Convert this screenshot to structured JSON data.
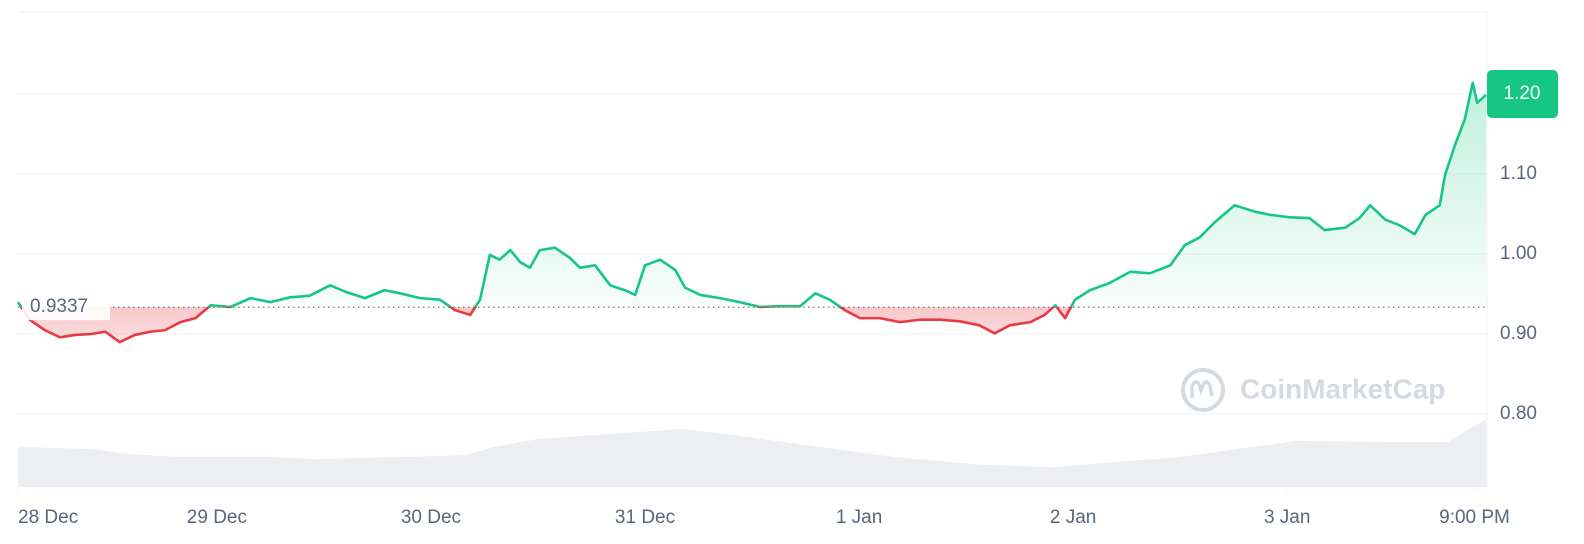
{
  "chart_data": {
    "type": "line",
    "watermark": "CoinMarketCap",
    "baseline": 0.9337,
    "price_tag": {
      "value": 1.2,
      "label": "1.20"
    },
    "xlim": [
      1.7,
      166.4
    ],
    "xticks": [
      {
        "value": 1.7,
        "label": "28 Dec"
      },
      {
        "value": 24,
        "label": "29 Dec"
      },
      {
        "value": 48,
        "label": "30 Dec"
      },
      {
        "value": 72,
        "label": "31 Dec"
      },
      {
        "value": 96,
        "label": "1 Jan"
      },
      {
        "value": 120,
        "label": "2 Jan"
      },
      {
        "value": 144,
        "label": "3 Jan"
      },
      {
        "value": 165,
        "label": "9:00 PM"
      }
    ],
    "ylim": [
      0.709,
      1.3025
    ],
    "yticks": [
      {
        "value": 0.8,
        "label": "0.80"
      },
      {
        "value": 0.9,
        "label": "0.90"
      },
      {
        "value": 1.0,
        "label": "1.00"
      },
      {
        "value": 1.1,
        "label": "1.10"
      },
      {
        "value": 1.2,
        "label": "1.20"
      }
    ],
    "grid": true,
    "up_color": "#16c784",
    "down_color": "#ea3943",
    "x": [
      1.7,
      3.0,
      4.7,
      6.4,
      8.1,
      9.8,
      11.5,
      13.1,
      14.8,
      16.5,
      18.2,
      19.9,
      21.6,
      23.3,
      25.5,
      27.8,
      30.0,
      32.2,
      34.4,
      36.7,
      38.4,
      40.6,
      42.8,
      44.5,
      46.8,
      49.0,
      50.7,
      52.4,
      53.5,
      54.6,
      55.7,
      56.9,
      58.0,
      59.1,
      60.2,
      61.9,
      63.6,
      64.7,
      66.4,
      68.1,
      69.7,
      70.9,
      72.0,
      73.7,
      75.4,
      76.5,
      78.2,
      80.4,
      82.6,
      84.9,
      87.1,
      89.4,
      91.1,
      92.7,
      94.4,
      96.1,
      98.3,
      100.6,
      102.8,
      105.1,
      107.3,
      109.5,
      111.2,
      112.9,
      115.2,
      116.8,
      118.0,
      119.1,
      120.2,
      121.9,
      124.1,
      126.4,
      128.6,
      130.9,
      132.5,
      134.2,
      135.9,
      138.1,
      140.4,
      142.1,
      144.3,
      146.5,
      148.2,
      150.5,
      152.1,
      153.3,
      155.0,
      156.6,
      158.3,
      159.5,
      161.1,
      161.7,
      162.8,
      163.9,
      164.8,
      165.3,
      166.3
    ],
    "values": [
      0.94,
      0.918,
      0.905,
      0.896,
      0.899,
      0.9,
      0.903,
      0.89,
      0.899,
      0.903,
      0.905,
      0.915,
      0.92,
      0.936,
      0.934,
      0.945,
      0.94,
      0.946,
      0.948,
      0.961,
      0.953,
      0.945,
      0.955,
      0.951,
      0.945,
      0.943,
      0.93,
      0.924,
      0.943,
      0.999,
      0.993,
      1.005,
      0.99,
      0.983,
      1.005,
      1.008,
      0.995,
      0.983,
      0.986,
      0.961,
      0.955,
      0.949,
      0.986,
      0.993,
      0.98,
      0.958,
      0.949,
      0.945,
      0.94,
      0.934,
      0.935,
      0.935,
      0.951,
      0.943,
      0.93,
      0.92,
      0.92,
      0.915,
      0.918,
      0.918,
      0.916,
      0.911,
      0.901,
      0.911,
      0.915,
      0.924,
      0.936,
      0.92,
      0.943,
      0.955,
      0.964,
      0.978,
      0.976,
      0.986,
      1.011,
      1.021,
      1.04,
      1.061,
      1.053,
      1.049,
      1.046,
      1.045,
      1.03,
      1.033,
      1.045,
      1.061,
      1.043,
      1.036,
      1.025,
      1.049,
      1.061,
      1.099,
      1.136,
      1.168,
      1.214,
      1.189,
      1.199
    ],
    "volume": {
      "color": "#eceef1",
      "x": [
        1.7,
        10,
        14,
        20,
        30,
        35,
        45,
        52,
        55,
        60,
        68,
        76,
        82,
        90,
        100,
        110,
        118,
        125,
        132,
        140,
        145,
        155,
        162,
        166.3
      ],
      "values": [
        40,
        38,
        33,
        30,
        30,
        28,
        30,
        32,
        40,
        48,
        53,
        58,
        52,
        42,
        30,
        22,
        20,
        25,
        30,
        40,
        46,
        45,
        45,
        68
      ]
    }
  }
}
